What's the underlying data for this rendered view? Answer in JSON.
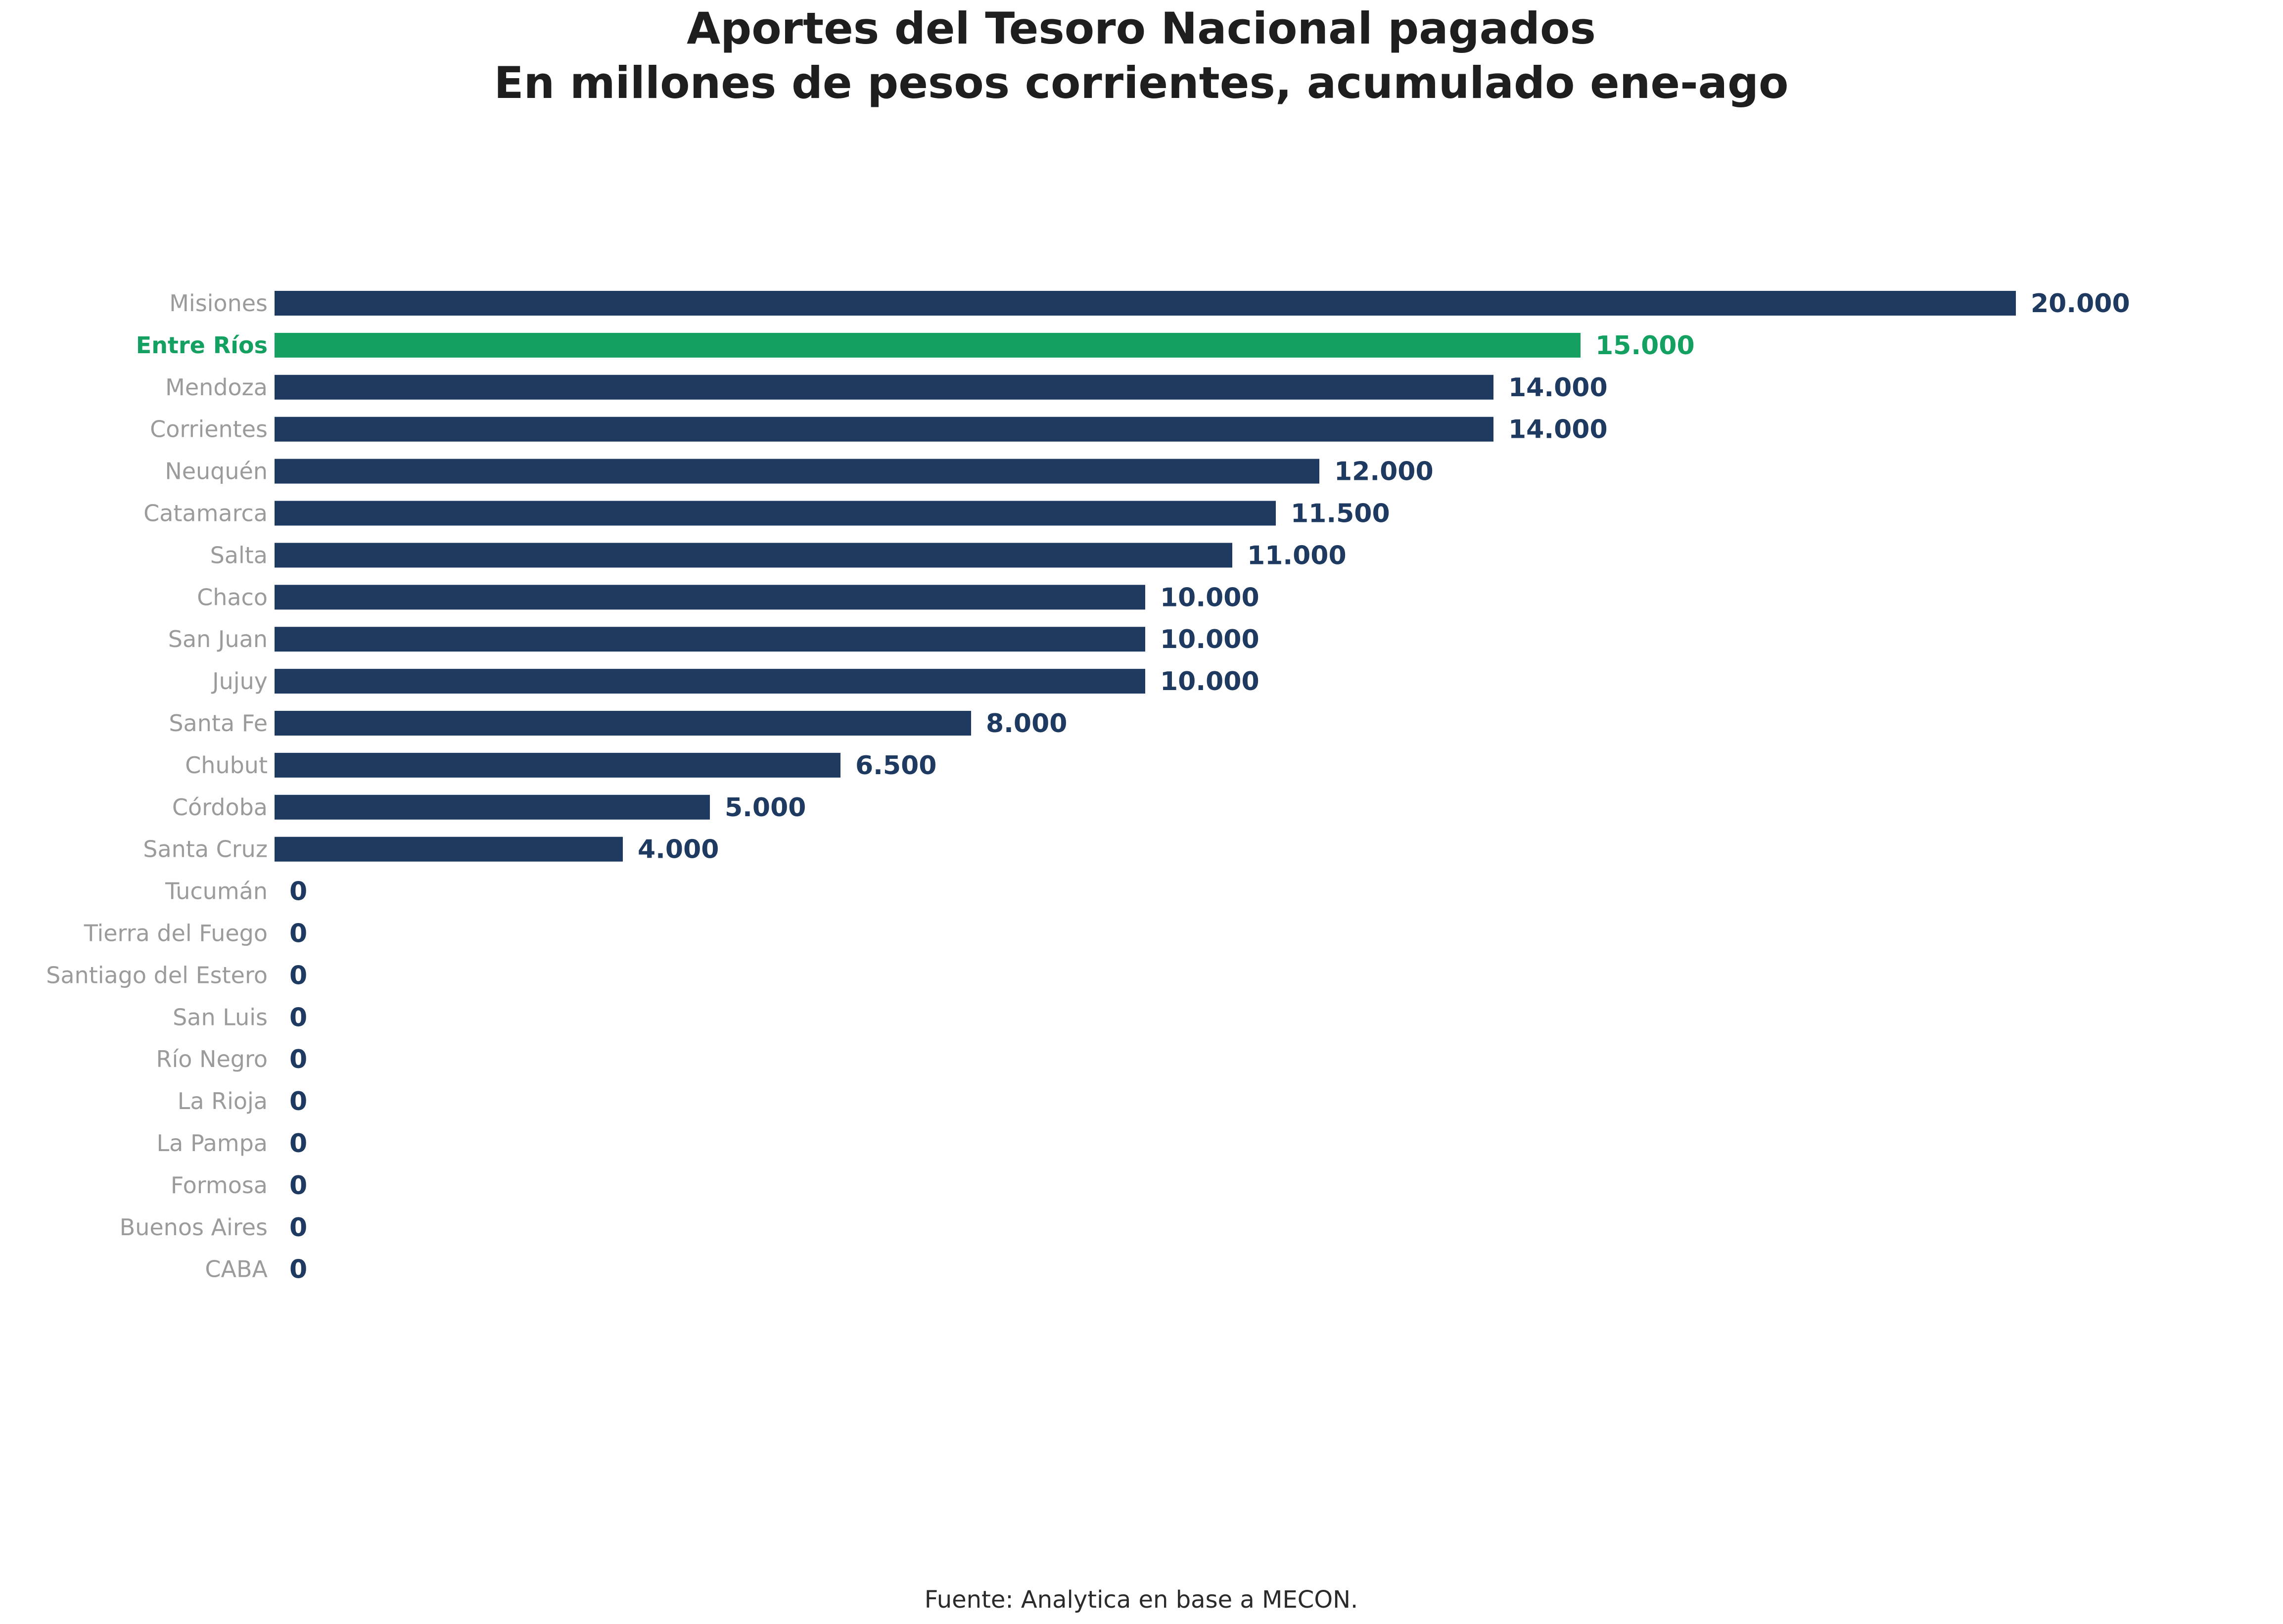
{
  "chart_data": {
    "type": "bar",
    "orientation": "horizontal",
    "title": "Aportes del Tesoro Nacional pagados",
    "subtitle": "En millones de pesos corrientes, acumulado ene-ago",
    "categories": [
      "Misiones",
      "Entre Ríos",
      "Mendoza",
      "Corrientes",
      "Neuquén",
      "Catamarca",
      "Salta",
      "Chaco",
      "San Juan",
      "Jujuy",
      "Santa Fe",
      "Chubut",
      "Córdoba",
      "Santa Cruz",
      "Tucumán",
      "Tierra del Fuego",
      "Santiago del Estero",
      "San Luis",
      "Río Negro",
      "La Rioja",
      "La Pampa",
      "Formosa",
      "Buenos Aires",
      "CABA"
    ],
    "values": [
      20000,
      15000,
      14000,
      14000,
      12000,
      11500,
      11000,
      10000,
      10000,
      10000,
      8000,
      6500,
      5000,
      4000,
      0,
      0,
      0,
      0,
      0,
      0,
      0,
      0,
      0,
      0
    ],
    "value_labels": [
      "20.000",
      "15.000",
      "14.000",
      "14.000",
      "12.000",
      "11.500",
      "11.000",
      "10.000",
      "10.000",
      "10.000",
      "8.000",
      "6.500",
      "5.000",
      "4.000",
      "0",
      "0",
      "0",
      "0",
      "0",
      "0",
      "0",
      "0",
      "0",
      "0"
    ],
    "highlight": "Entre Ríos",
    "xlim": [
      0,
      20000
    ],
    "grid": false,
    "legend": "none",
    "colors": {
      "bar": "#1f3a60",
      "highlight": "#14a061",
      "category_text": "#9b9b9b"
    },
    "source": "Fuente: Analytica en base a MECON."
  }
}
